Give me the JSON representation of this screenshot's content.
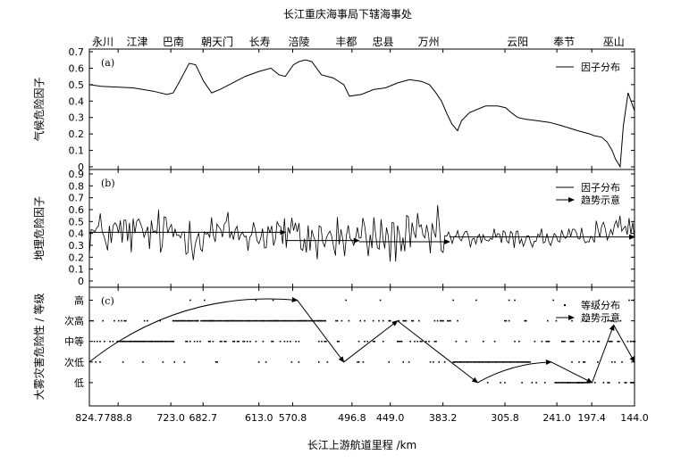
{
  "chart_data": {
    "type": "line",
    "title": "长江重庆海事局下辖海事处",
    "xlabel": "长江上游航道里程 /km",
    "x_reversed": true,
    "xlim": [
      824.7,
      144.0
    ],
    "x_ticks": [
      {
        "label": "824.7",
        "value": 824.7
      },
      {
        "label": "788.8",
        "value": 788.8
      },
      {
        "label": "723.0",
        "value": 723.0
      },
      {
        "label": "682.7",
        "value": 682.7
      },
      {
        "label": "613.0",
        "value": 613.0
      },
      {
        "label": "570.8",
        "value": 570.8
      },
      {
        "label": "496.8",
        "value": 496.8
      },
      {
        "label": "449.0",
        "value": 449.0
      },
      {
        "label": "383.2",
        "value": 383.2
      },
      {
        "label": "305.8",
        "value": 305.8
      },
      {
        "label": "241.0",
        "value": 241.0
      },
      {
        "label": "197.4",
        "value": 197.4
      },
      {
        "label": "144.0",
        "value": 144.0
      }
    ],
    "top_labels": [
      {
        "label": "永川",
        "value": 808
      },
      {
        "label": "江津",
        "value": 765
      },
      {
        "label": "巴南",
        "value": 720
      },
      {
        "label": "朝天门",
        "value": 665
      },
      {
        "label": "长寿",
        "value": 612
      },
      {
        "label": "涪陵",
        "value": 563
      },
      {
        "label": "丰都",
        "value": 504
      },
      {
        "label": "忠县",
        "value": 458
      },
      {
        "label": "万州",
        "value": 401
      },
      {
        "label": "云阳",
        "value": 290
      },
      {
        "label": "奉节",
        "value": 232
      },
      {
        "label": "巫山",
        "value": 170
      }
    ],
    "panels": [
      {
        "id": "a",
        "panel_label": "(a)",
        "ylabel": "气候危险因子",
        "ylim": [
          0,
          0.7
        ],
        "yticks": [
          "0",
          "0.1",
          "0.2",
          "0.3",
          "0.4",
          "0.5",
          "0.6",
          "0.7"
        ],
        "series": [
          {
            "name": "因子分布",
            "style": "line",
            "x": [
              824.7,
              810,
              790,
              770,
              745,
              728,
              720,
              712,
              700,
              692,
              682,
              672,
              662,
              650,
              630,
              613,
              598,
              588,
              580,
              570,
              563,
              555,
              547,
              535,
              520,
              507,
              500,
              485,
              470,
              455,
              440,
              425,
              410,
              400,
              392,
              385,
              378,
              372,
              365,
              360,
              350,
              330,
              315,
              305,
              298,
              290,
              280,
              265,
              250,
              235,
              215,
              200,
              195,
              185,
              178,
              172,
              168,
              162,
              158,
              152,
              144
            ],
            "y": [
              0.5,
              0.49,
              0.485,
              0.48,
              0.46,
              0.44,
              0.45,
              0.52,
              0.63,
              0.62,
              0.52,
              0.45,
              0.47,
              0.5,
              0.55,
              0.58,
              0.6,
              0.56,
              0.55,
              0.62,
              0.64,
              0.65,
              0.64,
              0.56,
              0.54,
              0.5,
              0.43,
              0.44,
              0.47,
              0.48,
              0.51,
              0.53,
              0.52,
              0.5,
              0.45,
              0.4,
              0.32,
              0.26,
              0.22,
              0.28,
              0.33,
              0.37,
              0.37,
              0.36,
              0.33,
              0.3,
              0.29,
              0.28,
              0.27,
              0.25,
              0.22,
              0.2,
              0.19,
              0.18,
              0.15,
              0.1,
              0.05,
              0.0,
              0.25,
              0.45,
              0.34
            ]
          }
        ]
      },
      {
        "id": "b",
        "panel_label": "(b)",
        "ylabel": "地理危险因子",
        "ylim": [
          0,
          0.9
        ],
        "yticks": [
          "0",
          "0.1",
          "0.2",
          "0.3",
          "0.4",
          "0.5",
          "0.6",
          "0.7",
          "0.8",
          "0.9"
        ],
        "series": [
          {
            "name": "因子分布",
            "style": "noisy-line",
            "points": 300,
            "segments": [
              {
                "from": 824.7,
                "to": 575,
                "mean": 0.4,
                "amp": 0.22
              },
              {
                "from": 575,
                "to": 380,
                "mean": 0.36,
                "amp": 0.24
              },
              {
                "from": 380,
                "to": 200,
                "mean": 0.36,
                "amp": 0.1
              },
              {
                "from": 200,
                "to": 144,
                "mean": 0.44,
                "amp": 0.12
              }
            ]
          },
          {
            "name": "趋势示意",
            "style": "arrows",
            "arrows": [
              {
                "x0": 824.7,
                "x1": 580,
                "y": 0.41
              },
              {
                "x0": 580,
                "x1": 488,
                "y": 0.34
              },
              {
                "x0": 488,
                "x1": 375,
                "y": 0.33
              },
              {
                "x0": 375,
                "x1": 144,
                "y": 0.37
              }
            ]
          }
        ]
      },
      {
        "id": "c",
        "panel_label": "(c)",
        "ylabel": "大雾灾害危险性 / 等级",
        "ylim": [
          0,
          5.5
        ],
        "yticks": [
          "低",
          "次低",
          "中等",
          "次高",
          "高"
        ],
        "ytick_values": [
          1,
          2,
          3,
          4,
          5
        ],
        "series": [
          {
            "name": "等级分布",
            "style": "dots",
            "bands": [
              {
                "level": 5,
                "from": 824.7,
                "to": 144,
                "density": 0.04
              },
              {
                "level": 4,
                "from": 824.7,
                "to": 144,
                "density": 0.25
              },
              {
                "level": 4,
                "from": 720,
                "to": 530,
                "density": 0.95
              },
              {
                "level": 3,
                "from": 824.7,
                "to": 144,
                "density": 0.3
              },
              {
                "level": 3,
                "from": 790,
                "to": 720,
                "density": 1.0
              },
              {
                "level": 2,
                "from": 824.7,
                "to": 144,
                "density": 0.1
              },
              {
                "level": 2,
                "from": 370,
                "to": 275,
                "density": 1.0
              },
              {
                "level": 1,
                "from": 330,
                "to": 144,
                "density": 0.2
              },
              {
                "level": 1,
                "from": 244,
                "to": 200,
                "density": 1.0
              }
            ]
          },
          {
            "name": "趋势示意",
            "style": "arrows",
            "arrows": [
              {
                "x0": 824.7,
                "y0": 2.0,
                "x1": 565,
                "y1": 5.0,
                "curve": 0.4
              },
              {
                "x0": 565,
                "y0": 5.0,
                "x1": 507,
                "y1": 2.0,
                "curve": 0
              },
              {
                "x0": 507,
                "y0": 2.0,
                "x1": 440,
                "y1": 4.0,
                "curve": 0
              },
              {
                "x0": 440,
                "y0": 4.0,
                "x1": 340,
                "y1": 1.0,
                "curve": 0
              },
              {
                "x0": 340,
                "y0": 1.0,
                "x1": 248,
                "y1": 2.0,
                "curve": 0.25
              },
              {
                "x0": 248,
                "y0": 2.0,
                "x1": 197,
                "y1": 1.0,
                "curve": 0
              },
              {
                "x0": 197,
                "y0": 1.0,
                "x1": 170,
                "y1": 3.8,
                "curve": 0
              },
              {
                "x0": 170,
                "y0": 3.8,
                "x1": 144,
                "y1": 2.0,
                "curve": 0
              }
            ]
          }
        ]
      }
    ],
    "legend_position": "top-right",
    "grid": false
  }
}
